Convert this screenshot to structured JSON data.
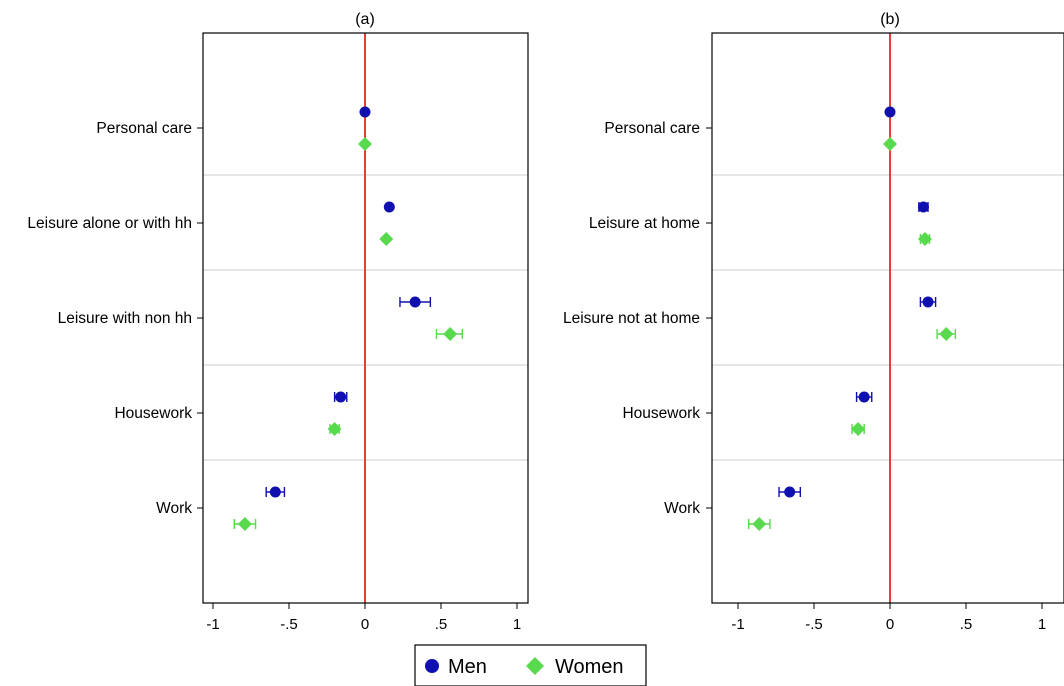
{
  "chart_data": [
    {
      "type": "scatter",
      "panel_title": "(a)",
      "categories": [
        "Personal care",
        "Leisure alone or with hh",
        "Leisure with non hh",
        "Housework",
        "Work"
      ],
      "xlim": [
        -1.05,
        1.05
      ],
      "xticks": [
        -1,
        -0.5,
        0,
        0.5,
        1
      ],
      "xtick_labels": [
        "-1",
        "-.5",
        "0",
        ".5",
        "1"
      ],
      "reference_line": 0,
      "series": [
        {
          "name": "Men",
          "marker": "circle",
          "color": "#1010b0",
          "values": [
            0.0,
            0.16,
            0.33,
            -0.16,
            -0.59
          ],
          "ci_low": [
            0.0,
            0.15,
            0.23,
            -0.2,
            -0.65
          ],
          "ci_high": [
            0.0,
            0.17,
            0.43,
            -0.12,
            -0.53
          ]
        },
        {
          "name": "Women",
          "marker": "diamond",
          "color": "#59d94d",
          "values": [
            0.0,
            0.14,
            0.56,
            -0.2,
            -0.79
          ],
          "ci_low": [
            0.0,
            0.13,
            0.47,
            -0.23,
            -0.86
          ],
          "ci_high": [
            0.0,
            0.15,
            0.64,
            -0.17,
            -0.72
          ]
        }
      ]
    },
    {
      "type": "scatter",
      "panel_title": "(b)",
      "categories": [
        "Personal care",
        "Leisure at home",
        "Leisure not at home",
        "Housework",
        "Work"
      ],
      "xlim": [
        -1.05,
        1.05
      ],
      "xticks": [
        -1,
        -0.5,
        0,
        0.5,
        1
      ],
      "xtick_labels": [
        "-1",
        "-.5",
        "0",
        ".5",
        "1"
      ],
      "reference_line": 0,
      "series": [
        {
          "name": "Men",
          "marker": "circle",
          "color": "#1010b0",
          "values": [
            0.0,
            0.22,
            0.25,
            -0.17,
            -0.66
          ],
          "ci_low": [
            0.0,
            0.19,
            0.2,
            -0.22,
            -0.73
          ],
          "ci_high": [
            0.0,
            0.25,
            0.3,
            -0.12,
            -0.59
          ]
        },
        {
          "name": "Women",
          "marker": "diamond",
          "color": "#59d94d",
          "values": [
            0.0,
            0.23,
            0.37,
            -0.21,
            -0.86
          ],
          "ci_low": [
            0.0,
            0.2,
            0.31,
            -0.25,
            -0.93
          ],
          "ci_high": [
            0.0,
            0.26,
            0.43,
            -0.17,
            -0.79
          ]
        }
      ]
    }
  ],
  "legend": {
    "placement": "bottom-center",
    "items": [
      {
        "label": "Men",
        "marker": "circle",
        "color": "#1010b0"
      },
      {
        "label": "Women",
        "marker": "diamond",
        "color": "#59d94d"
      }
    ]
  },
  "colors": {
    "reference_line": "#e8281e",
    "separator": "#d6d6d6",
    "frame": "#000000"
  }
}
